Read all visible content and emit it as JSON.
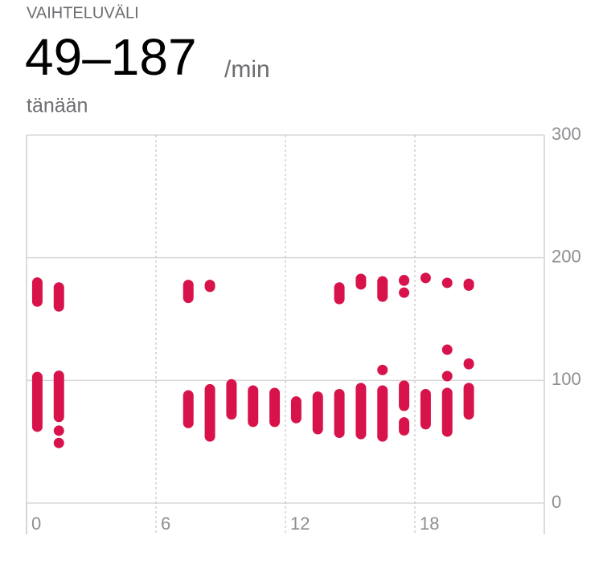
{
  "header": {
    "label": "VAIHTELUVÄLI",
    "value": "49–187",
    "unit": "/min",
    "period": "tänään"
  },
  "chart_data": {
    "type": "range",
    "x": [
      0,
      0,
      1,
      1,
      1,
      1,
      7,
      7,
      8,
      8,
      9,
      10,
      11,
      12,
      13,
      14,
      14,
      15,
      15,
      16,
      16,
      16,
      17,
      17,
      17,
      17,
      18,
      18,
      19,
      19,
      19,
      19,
      20,
      20,
      20
    ],
    "low": [
      58,
      160,
      49,
      59,
      66,
      156,
      61,
      163,
      50,
      172,
      68,
      62,
      62,
      65,
      56,
      53,
      162,
      52,
      174,
      50,
      105,
      164,
      55,
      75,
      169,
      177,
      60,
      181,
      54,
      101,
      123,
      176,
      68,
      109,
      173
    ],
    "high": [
      107,
      184,
      49,
      59,
      108,
      180,
      92,
      182,
      97,
      182,
      101,
      96,
      94,
      87,
      91,
      93,
      180,
      98,
      187,
      96,
      112,
      185,
      70,
      100,
      174,
      186,
      93,
      186,
      94,
      106,
      127,
      183,
      98,
      118,
      183
    ],
    "color": "#d8134b",
    "xlim": [
      0,
      24
    ],
    "xticks": [
      0,
      6,
      12,
      18
    ],
    "ylim": [
      0,
      300
    ],
    "yticks": [
      0,
      100,
      200,
      300
    ],
    "grid": true
  }
}
